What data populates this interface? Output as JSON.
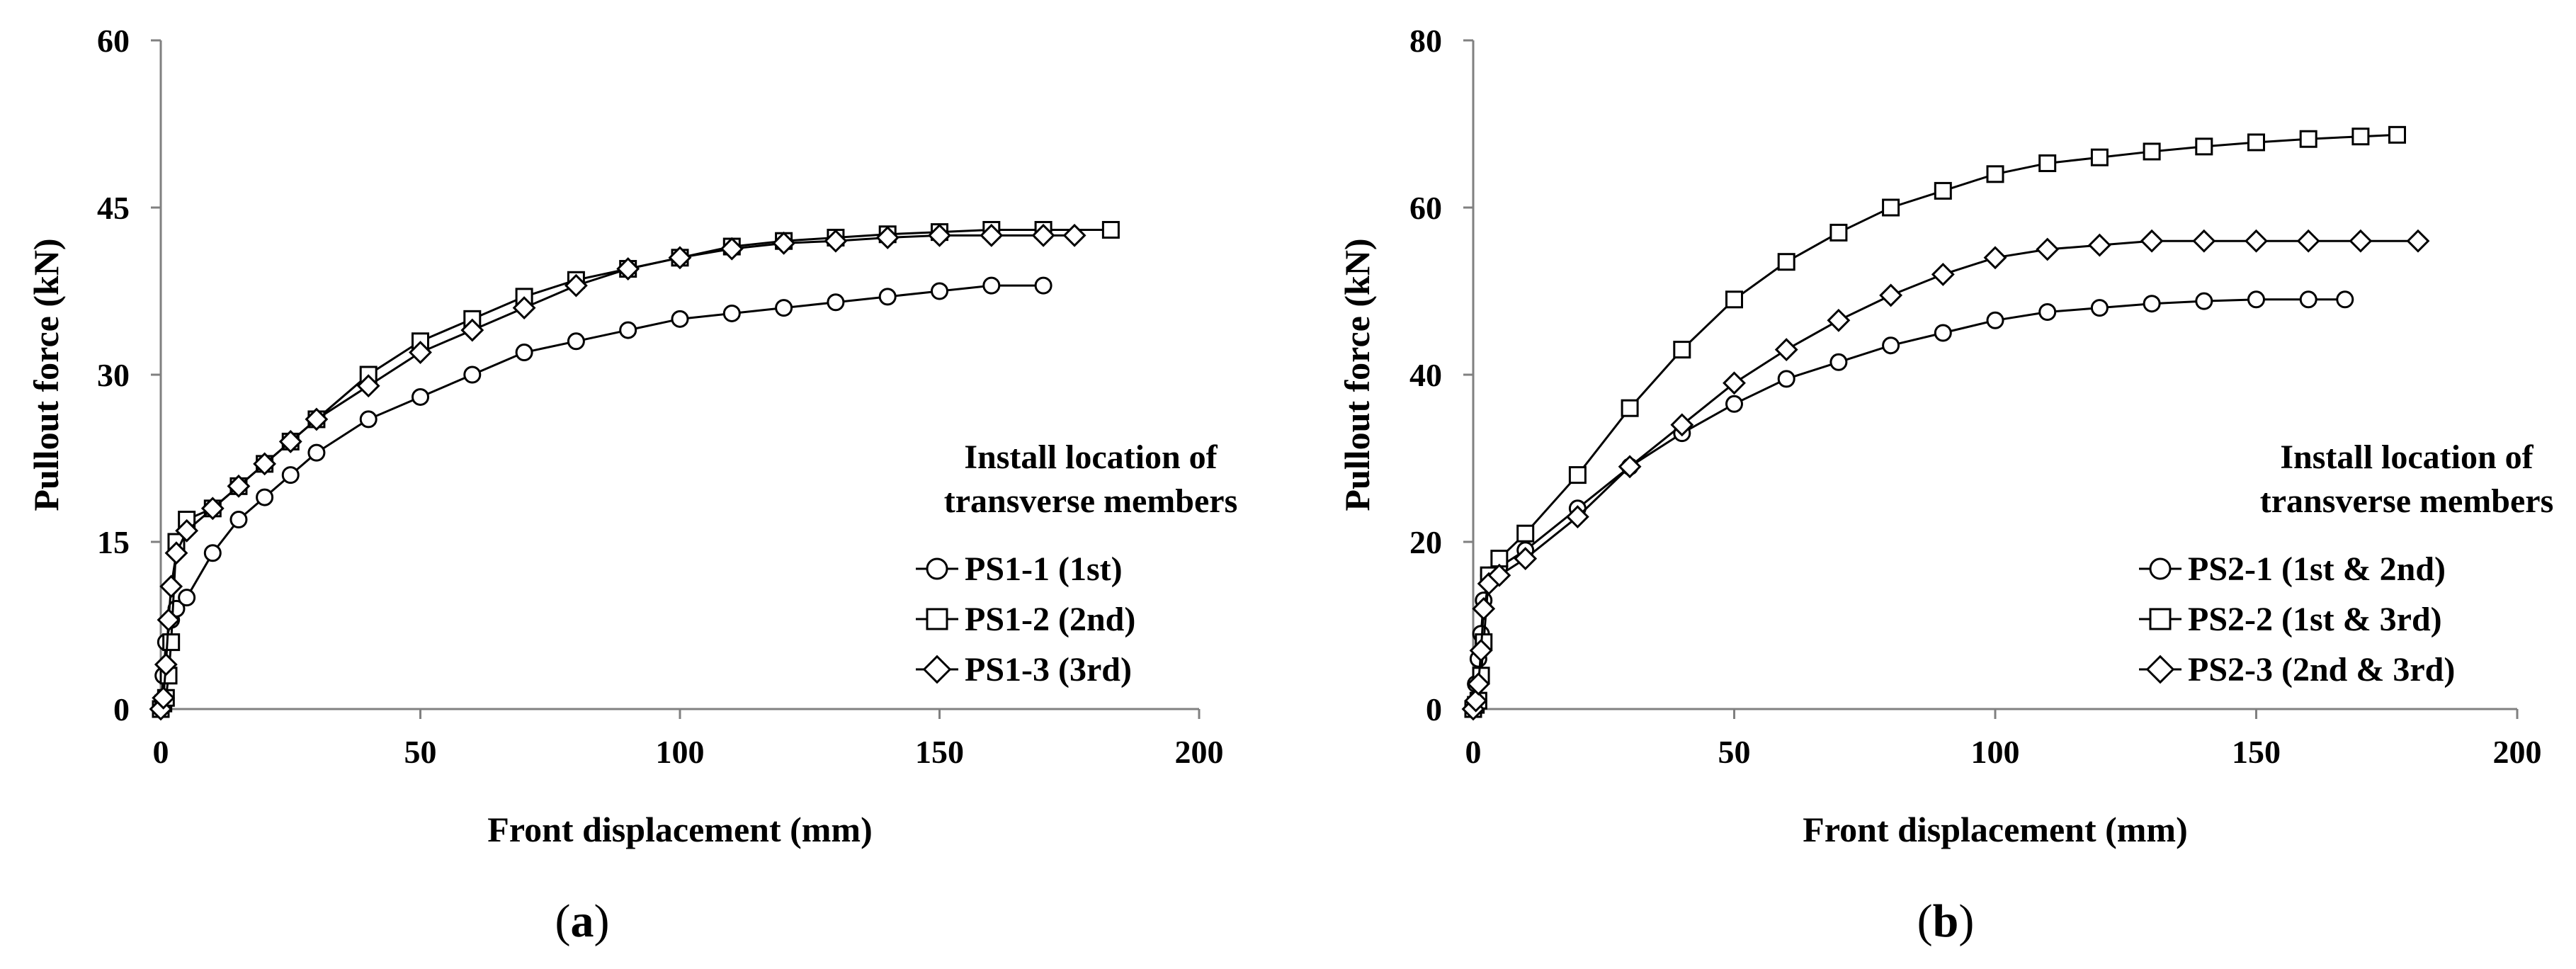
{
  "chart_data": [
    {
      "panel": "(a)",
      "type": "line",
      "xlabel": "Front displacement (mm)",
      "ylabel": "Pullout force (kN)",
      "xlim": [
        0,
        200
      ],
      "ylim": [
        0,
        60
      ],
      "xticks": [
        0,
        50,
        100,
        150,
        200
      ],
      "yticks": [
        0,
        15,
        30,
        45,
        60
      ],
      "legend_title": [
        "Install location of",
        "transverse members"
      ],
      "legend_position": "right",
      "series": [
        {
          "name": "PS1-1 (1st)",
          "marker": "circle",
          "x": [
            0,
            0.5,
            1,
            2,
            3,
            5,
            10,
            15,
            20,
            25,
            30,
            40,
            50,
            60,
            70,
            80,
            90,
            100,
            110,
            120,
            130,
            140,
            150,
            160,
            170
          ],
          "y": [
            0,
            3,
            6,
            8,
            9,
            10,
            14,
            17,
            19,
            21,
            23,
            26,
            28,
            30,
            32,
            33,
            34,
            35,
            35.5,
            36,
            36.5,
            37,
            37.5,
            38,
            38
          ]
        },
        {
          "name": "PS1-2 (2nd)",
          "marker": "square",
          "x": [
            0,
            0.5,
            1,
            1.5,
            2,
            3,
            5,
            10,
            15,
            20,
            25,
            30,
            40,
            50,
            60,
            70,
            80,
            90,
            100,
            110,
            120,
            130,
            140,
            150,
            160,
            170,
            183
          ],
          "y": [
            0,
            0.5,
            1,
            3,
            6,
            15,
            17,
            18,
            20,
            22,
            24,
            26,
            30,
            33,
            35,
            37,
            38.5,
            39.5,
            40.5,
            41.5,
            42,
            42.3,
            42.6,
            42.8,
            43,
            43,
            43
          ]
        },
        {
          "name": "PS1-3 (3rd)",
          "marker": "diamond",
          "x": [
            0,
            0.5,
            1,
            1.5,
            2,
            3,
            5,
            10,
            15,
            20,
            25,
            30,
            40,
            50,
            60,
            70,
            80,
            90,
            100,
            110,
            120,
            130,
            140,
            150,
            160,
            170,
            176
          ],
          "y": [
            0,
            1,
            4,
            8,
            11,
            14,
            16,
            18,
            20,
            22,
            24,
            26,
            29,
            32,
            34,
            36,
            38,
            39.5,
            40.5,
            41.3,
            41.8,
            42,
            42.3,
            42.5,
            42.5,
            42.5,
            42.5
          ]
        }
      ]
    },
    {
      "panel": "(b)",
      "type": "line",
      "xlabel": "Front displacement (mm)",
      "ylabel": "Pullout force (kN)",
      "xlim": [
        0,
        200
      ],
      "ylim": [
        0,
        80
      ],
      "xticks": [
        0,
        50,
        100,
        150,
        200
      ],
      "yticks": [
        0,
        20,
        40,
        60,
        80
      ],
      "legend_title": [
        "Install location of",
        "transverse members"
      ],
      "legend_position": "right",
      "series": [
        {
          "name": "PS2-1 (1st & 2nd)",
          "marker": "circle",
          "x": [
            0,
            0.5,
            1,
            1.5,
            2,
            3,
            5,
            10,
            20,
            30,
            40,
            50,
            60,
            70,
            80,
            90,
            100,
            110,
            120,
            130,
            140,
            150,
            160,
            167
          ],
          "y": [
            0,
            3,
            6,
            9,
            13,
            16,
            17,
            19,
            24,
            29,
            33,
            36.5,
            39.5,
            41.5,
            43.5,
            45,
            46.5,
            47.5,
            48,
            48.5,
            48.8,
            49,
            49,
            49
          ]
        },
        {
          "name": "PS2-2 (1st & 3rd)",
          "marker": "square",
          "x": [
            0,
            0.5,
            1,
            1.5,
            2,
            3,
            5,
            10,
            20,
            30,
            40,
            50,
            60,
            70,
            80,
            90,
            100,
            110,
            120,
            130,
            140,
            150,
            160,
            170,
            177
          ],
          "y": [
            0,
            0.5,
            1,
            4,
            8,
            16,
            18,
            21,
            28,
            36,
            43,
            49,
            53.5,
            57,
            60,
            62,
            64,
            65.3,
            66,
            66.7,
            67.3,
            67.8,
            68.2,
            68.5,
            68.7
          ]
        },
        {
          "name": "PS2-3 (2nd & 3rd)",
          "marker": "diamond",
          "x": [
            0,
            0.5,
            1,
            1.5,
            2,
            3,
            5,
            10,
            20,
            30,
            40,
            50,
            60,
            70,
            80,
            90,
            100,
            110,
            120,
            130,
            140,
            150,
            160,
            170,
            181
          ],
          "y": [
            0,
            1,
            3,
            7,
            12,
            15,
            16,
            18,
            23,
            29,
            34,
            39,
            43,
            46.5,
            49.5,
            52,
            54,
            55,
            55.5,
            56,
            56,
            56,
            56,
            56,
            56
          ]
        }
      ]
    }
  ]
}
